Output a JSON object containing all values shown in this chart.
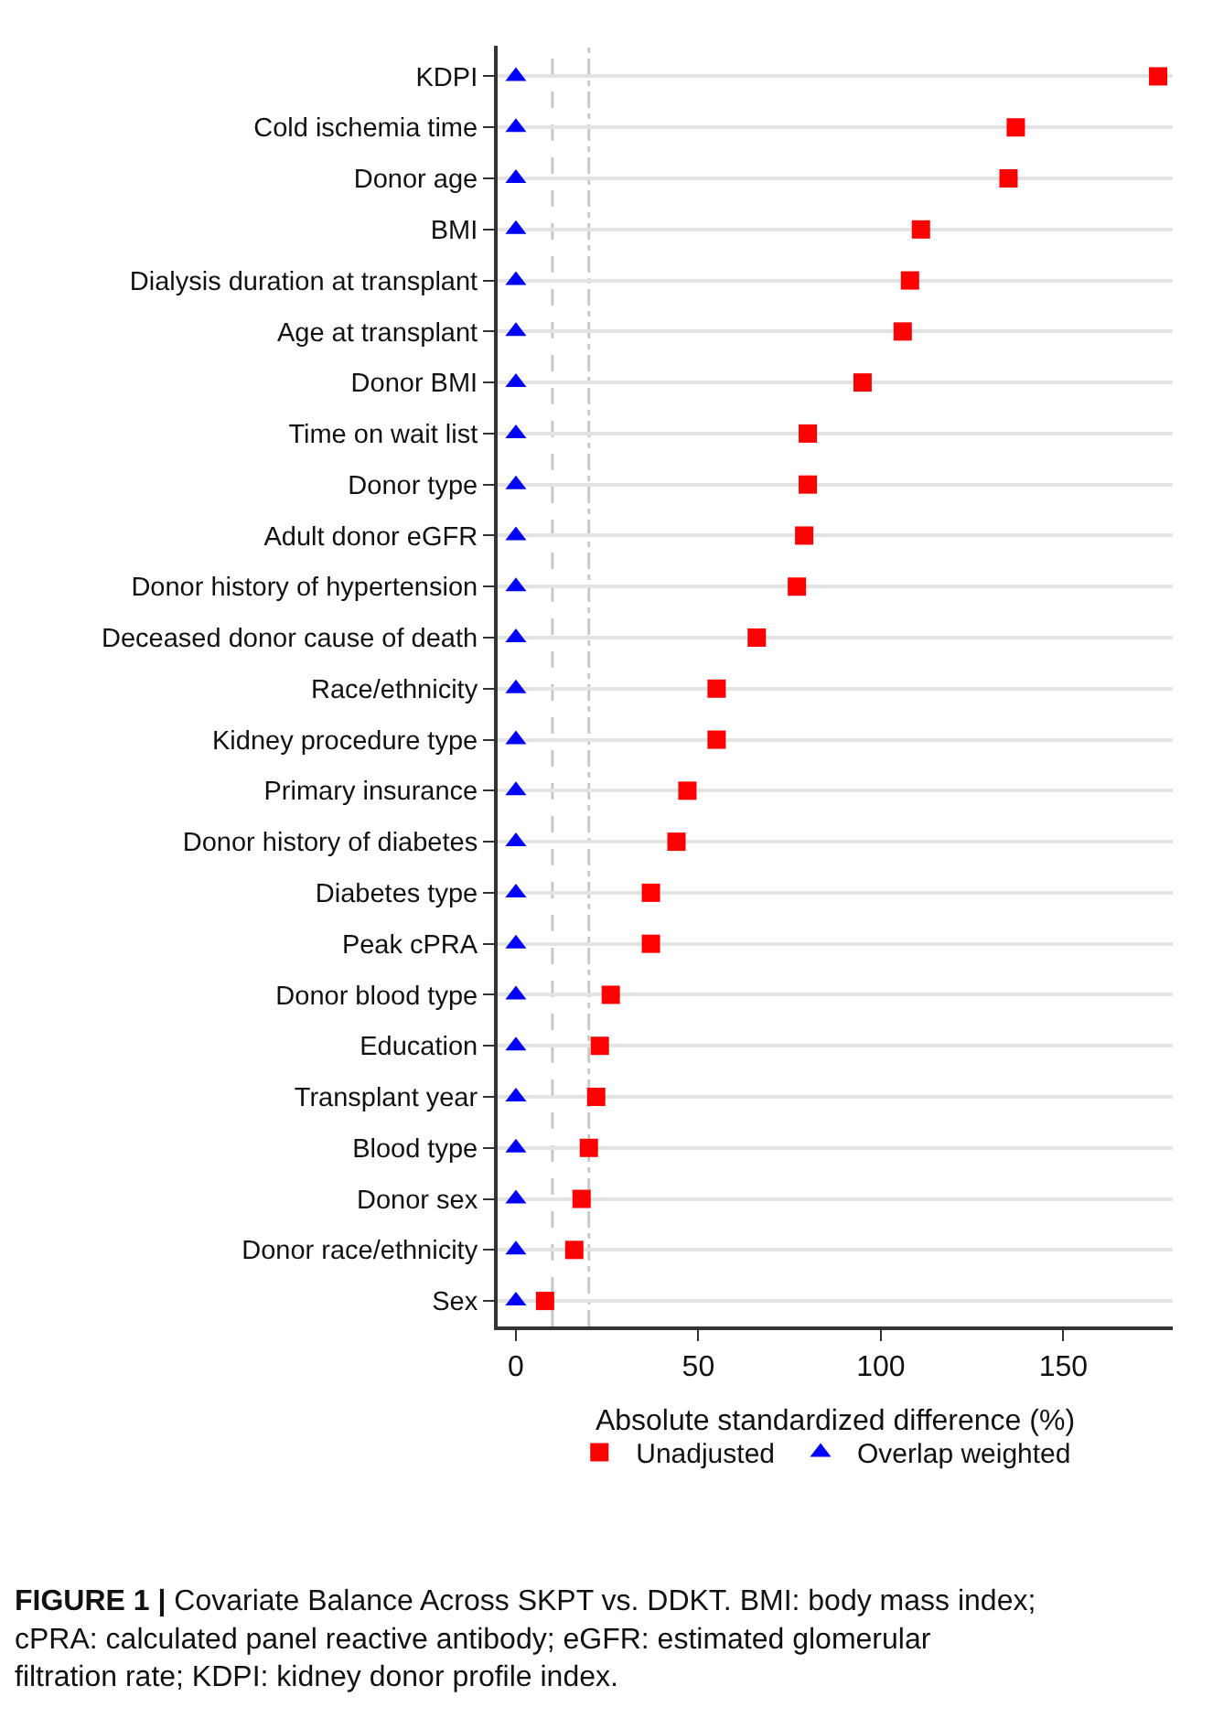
{
  "chart_data": {
    "type": "scatter",
    "orientation": "horizontal",
    "categories": [
      "KDPI",
      "Cold ischemia time",
      "Donor age",
      "BMI",
      "Dialysis duration at transplant",
      "Age at transplant",
      "Donor BMI",
      "Time on wait list",
      "Donor type",
      "Adult donor eGFR",
      "Donor history of hypertension",
      "Deceased donor cause of death",
      "Race/ethnicity",
      "Kidney procedure type",
      "Primary insurance",
      "Donor history of diabetes",
      "Diabetes type",
      "Peak cPRA",
      "Donor blood type",
      "Education",
      "Transplant year",
      "Blood type",
      "Donor sex",
      "Donor race/ethnicity",
      "Sex"
    ],
    "series": [
      {
        "name": "Unadjusted",
        "color": "#ff0000",
        "marker": "square",
        "values": [
          176,
          137,
          135,
          111,
          108,
          106,
          95,
          80,
          80,
          79,
          77,
          66,
          55,
          55,
          47,
          44,
          37,
          37,
          26,
          23,
          22,
          20,
          18,
          16,
          8
        ]
      },
      {
        "name": "Overlap weighted",
        "color": "#0000ff",
        "marker": "triangle",
        "values": [
          0,
          0,
          0,
          0,
          0,
          0,
          0,
          0,
          0,
          0,
          0,
          0,
          0,
          0,
          0,
          0,
          0,
          0,
          0,
          0,
          0,
          0,
          0,
          0,
          0
        ]
      }
    ],
    "xlabel": "Absolute standardized difference (%)",
    "xlim": [
      -5,
      180
    ],
    "xticks": [
      0,
      50,
      100,
      150
    ],
    "ref_lines": [
      {
        "axis": "x",
        "value": 10,
        "color": "#c8c8c8",
        "line_style": "dashed"
      },
      {
        "axis": "x",
        "value": 20,
        "color": "#c8c8c8",
        "line_style": "dotted"
      }
    ],
    "grid": "y",
    "legend": "bottom",
    "annotations": [
      "FIGURE 1 | Covariate Balance Across SKPT vs. DDKT. BMI: body mass index; cPRA: calculated panel reactive antibody; eGFR: estimated glomerular filtration rate; KDPI: kidney donor profile index."
    ]
  }
}
